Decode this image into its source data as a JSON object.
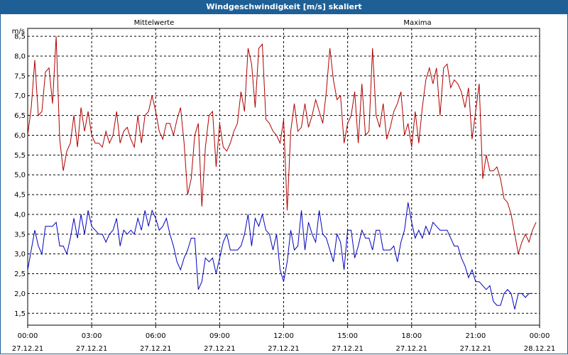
{
  "window": {
    "title": "Windgeschwindigkeit [m/s] skaliert"
  },
  "legend": {
    "left_label": "Mittelwerte",
    "right_label": "Maxima"
  },
  "axis": {
    "y_unit": "m/s"
  },
  "colors": {
    "title_bg": "#1e5f96",
    "mean": "#0000c0",
    "max": "#b00000",
    "grid": "#000000"
  },
  "chart_data": {
    "type": "line",
    "title": "Windgeschwindigkeit [m/s] skaliert",
    "ylabel": "m/s",
    "ylim": [
      1.2,
      8.7
    ],
    "y_ticks": [
      1.5,
      2.0,
      2.5,
      3.0,
      3.5,
      4.0,
      4.5,
      5.0,
      5.5,
      6.0,
      6.5,
      7.0,
      7.5,
      8.0,
      8.5
    ],
    "y_tick_labels": [
      "1,5",
      "2,0",
      "2,5",
      "3,0",
      "3,5",
      "4,0",
      "4,5",
      "5,0",
      "5,5",
      "6,0",
      "6,5",
      "7,0",
      "7,5",
      "8,0",
      "8,5"
    ],
    "xlim_hours": [
      0,
      24
    ],
    "x_ticks": [
      {
        "time": "00:00",
        "date": "27.12.21"
      },
      {
        "time": "03:00",
        "date": "27.12.21"
      },
      {
        "time": "06:00",
        "date": "27.12.21"
      },
      {
        "time": "09:00",
        "date": "27.12.21"
      },
      {
        "time": "12:00",
        "date": "27.12.21"
      },
      {
        "time": "15:00",
        "date": "27.12.21"
      },
      {
        "time": "18:00",
        "date": "27.12.21"
      },
      {
        "time": "21:00",
        "date": "27.12.21"
      },
      {
        "time": "00:00",
        "date": "28.12.21"
      }
    ],
    "grid": true,
    "legend_position": "top",
    "series": [
      {
        "name": "Mittelwerte",
        "color": "#0000c0",
        "interval_minutes": 10,
        "values": [
          2.6,
          3.1,
          3.6,
          3.2,
          3.0,
          3.7,
          3.7,
          3.7,
          3.8,
          3.2,
          3.2,
          3.0,
          3.4,
          3.9,
          3.4,
          4.0,
          3.5,
          4.1,
          3.7,
          3.6,
          3.5,
          3.5,
          3.3,
          3.5,
          3.6,
          3.9,
          3.2,
          3.6,
          3.5,
          3.6,
          3.5,
          3.9,
          3.6,
          4.1,
          3.7,
          4.1,
          3.9,
          3.6,
          3.7,
          3.9,
          3.5,
          3.2,
          2.8,
          2.6,
          2.9,
          3.1,
          3.4,
          3.4,
          2.1,
          2.3,
          2.9,
          2.8,
          2.9,
          2.5,
          2.9,
          3.3,
          3.5,
          3.1,
          3.1,
          3.1,
          3.2,
          3.5,
          4.0,
          3.2,
          3.9,
          3.7,
          4.0,
          3.6,
          3.5,
          3.1,
          3.5,
          2.6,
          2.3,
          2.8,
          3.6,
          3.1,
          3.2,
          4.1,
          3.1,
          3.8,
          3.5,
          3.3,
          4.1,
          3.5,
          3.4,
          3.1,
          2.8,
          3.5,
          3.3,
          2.6,
          3.6,
          3.6,
          2.9,
          3.2,
          3.6,
          3.4,
          3.4,
          3.1,
          3.6,
          3.6,
          3.1,
          3.1,
          3.1,
          3.2,
          2.8,
          3.3,
          3.6,
          4.3,
          3.8,
          3.4,
          3.6,
          3.4,
          3.7,
          3.5,
          3.8,
          3.7,
          3.6,
          3.6,
          3.6,
          3.4,
          3.2,
          3.2,
          2.9,
          2.7,
          2.4,
          2.6,
          2.3,
          2.3,
          2.2,
          2.1,
          2.2,
          1.8,
          1.7,
          1.7,
          2.0,
          2.1,
          2.0,
          1.6,
          2.0,
          2.0,
          1.9,
          2.0,
          2.0
        ]
      },
      {
        "name": "Maxima",
        "color": "#b00000",
        "interval_minutes": 10,
        "values": [
          6.0,
          6.7,
          7.9,
          6.5,
          6.6,
          7.6,
          7.7,
          6.8,
          8.5,
          5.9,
          5.1,
          5.6,
          5.8,
          6.5,
          5.7,
          6.7,
          6.1,
          6.6,
          6.0,
          5.8,
          5.8,
          5.7,
          6.1,
          5.8,
          6.0,
          6.6,
          5.8,
          6.1,
          6.2,
          5.9,
          5.7,
          6.5,
          5.8,
          6.5,
          6.6,
          7.0,
          6.6,
          6.1,
          5.9,
          6.3,
          6.3,
          6.0,
          6.4,
          6.7,
          5.8,
          4.5,
          4.9,
          6.0,
          6.3,
          4.2,
          5.7,
          6.5,
          6.6,
          5.2,
          6.3,
          5.7,
          5.6,
          5.8,
          6.1,
          6.3,
          7.1,
          6.6,
          8.2,
          7.8,
          6.7,
          8.2,
          8.3,
          6.4,
          6.3,
          6.1,
          6.0,
          5.8,
          6.4,
          4.1,
          6.1,
          6.8,
          6.1,
          6.2,
          6.8,
          6.2,
          6.5,
          6.9,
          6.6,
          6.3,
          7.1,
          8.2,
          7.4,
          6.9,
          7.0,
          5.8,
          6.3,
          6.5,
          7.1,
          5.8,
          7.3,
          6.0,
          6.1,
          8.2,
          6.5,
          6.2,
          6.8,
          5.9,
          6.2,
          6.6,
          6.8,
          7.1,
          6.0,
          6.3,
          5.7,
          6.6,
          5.8,
          6.7,
          7.4,
          7.7,
          7.3,
          7.7,
          6.5,
          7.7,
          7.8,
          7.2,
          7.4,
          7.3,
          7.1,
          6.7,
          7.2,
          5.9,
          6.6,
          7.3,
          4.9,
          5.5,
          5.1,
          5.1,
          5.2,
          4.9,
          4.4,
          4.3,
          4.0,
          3.5,
          3.0,
          3.3,
          3.5,
          3.3,
          3.6,
          3.8
        ]
      }
    ]
  }
}
